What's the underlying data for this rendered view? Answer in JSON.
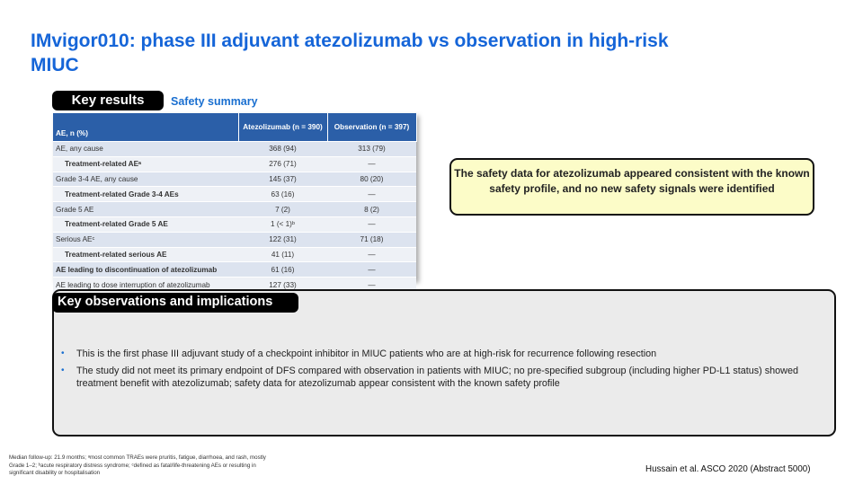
{
  "title": "IMvigor010: phase III adjuvant atezolizumab vs observation in high-risk MIUC",
  "key_results": "Key results",
  "safety_summary": "Safety summary",
  "table": {
    "headers": [
      "AE, n (%)",
      "Atezolizumab (n = 390)",
      "Observation (n = 397)"
    ],
    "rows": [
      {
        "label": "AE, any cause",
        "atezo": "368 (94)",
        "obs": "313 (79)"
      },
      {
        "label": "Treatment-related AEᵃ",
        "atezo": "276 (71)",
        "obs": "—"
      },
      {
        "label": "Grade 3-4 AE, any cause",
        "atezo": "145 (37)",
        "obs": "80 (20)"
      },
      {
        "label": "Treatment-related Grade 3-4 AEs",
        "atezo": "63 (16)",
        "obs": "—"
      },
      {
        "label": "Grade 5 AE",
        "atezo": "7 (2)",
        "obs": "8 (2)"
      },
      {
        "label": "Treatment-related Grade 5 AE",
        "atezo": "1 (< 1)ᵇ",
        "obs": "—"
      },
      {
        "label": "Serious AEᶜ",
        "atezo": "122 (31)",
        "obs": "71 (18)"
      },
      {
        "label": "Treatment-related serious AE",
        "atezo": "41 (11)",
        "obs": "—"
      },
      {
        "label": "AE leading to discontinuation of atezolizumab",
        "atezo": "61 (16)",
        "obs": "—"
      },
      {
        "label": "AE leading to dose interruption of atezolizumab",
        "atezo": "127 (33)",
        "obs": "—"
      }
    ]
  },
  "callout": "The safety data for atezolizumab appeared consistent with the known safety profile, and no new safety signals were identified",
  "observations": {
    "heading": "Key observations and implications",
    "bullets": [
      "This is the first phase III adjuvant study of a checkpoint inhibitor in MIUC patients who are at high-risk for recurrence following resection",
      "The study did not meet its primary endpoint of DFS compared with observation in patients with MIUC; no pre-specified subgroup (including higher PD-L1 status) showed treatment benefit with atezolizumab; safety data for atezolizumab appear consistent with the known safety profile"
    ]
  },
  "footnote": "Median follow-up: 21.9 months; ᵃmost common TRAEs were pruritis, fatigue, diarrhoea, and rash, mostly Grade 1–2; ᵇacute respiratory distress syndrome; ᶜdefined as fatal/life-threatening AEs or resulting in significant disability or hospitalisation",
  "citation": "Hussain et al. ASCO 2020 (Abstract 5000)"
}
